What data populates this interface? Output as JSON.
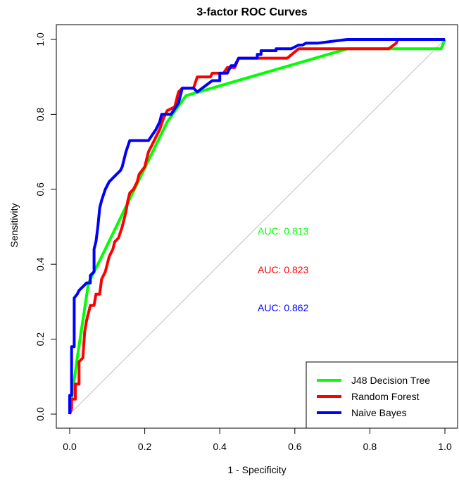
{
  "chart_data": {
    "type": "line",
    "title": "3-factor ROC Curves",
    "xlabel": "1 - Specificity",
    "ylabel": "Sensitivity",
    "xlim": [
      0,
      1
    ],
    "ylim": [
      0,
      1
    ],
    "xticks": [
      "0.0",
      "0.2",
      "0.4",
      "0.6",
      "0.8",
      "1.0"
    ],
    "yticks": [
      "0.0",
      "0.2",
      "0.4",
      "0.6",
      "0.8",
      "1.0"
    ],
    "legend_position": "bottom-right",
    "grid": false,
    "diagonal_reference": true,
    "diagonal_color": "#c0c0c0",
    "series": [
      {
        "name": "J48 Decision Tree",
        "color": "#00ff00",
        "auc_label": "AUC: 0.813",
        "points": [
          [
            0,
            0
          ],
          [
            0.02,
            0.15
          ],
          [
            0.05,
            0.35
          ],
          [
            0.085,
            0.42
          ],
          [
            0.26,
            0.78
          ],
          [
            0.31,
            0.85
          ],
          [
            0.74,
            0.975
          ],
          [
            0.99,
            0.975
          ],
          [
            1.0,
            1.0
          ]
        ]
      },
      {
        "name": "Random Forest",
        "color": "#ff0000",
        "auc_label": "AUC: 0.823",
        "points": [
          [
            0,
            0
          ],
          [
            0.005,
            0.015
          ],
          [
            0.005,
            0.04
          ],
          [
            0.015,
            0.04
          ],
          [
            0.015,
            0.08
          ],
          [
            0.025,
            0.08
          ],
          [
            0.025,
            0.14
          ],
          [
            0.035,
            0.15
          ],
          [
            0.04,
            0.22
          ],
          [
            0.045,
            0.25
          ],
          [
            0.05,
            0.27
          ],
          [
            0.055,
            0.29
          ],
          [
            0.065,
            0.29
          ],
          [
            0.07,
            0.32
          ],
          [
            0.08,
            0.32
          ],
          [
            0.085,
            0.36
          ],
          [
            0.095,
            0.38
          ],
          [
            0.1,
            0.4
          ],
          [
            0.105,
            0.42
          ],
          [
            0.11,
            0.43
          ],
          [
            0.115,
            0.44
          ],
          [
            0.12,
            0.46
          ],
          [
            0.13,
            0.47
          ],
          [
            0.14,
            0.5
          ],
          [
            0.15,
            0.54
          ],
          [
            0.155,
            0.57
          ],
          [
            0.16,
            0.59
          ],
          [
            0.17,
            0.6
          ],
          [
            0.18,
            0.62
          ],
          [
            0.185,
            0.64
          ],
          [
            0.2,
            0.66
          ],
          [
            0.21,
            0.7
          ],
          [
            0.22,
            0.72
          ],
          [
            0.23,
            0.74
          ],
          [
            0.24,
            0.76
          ],
          [
            0.25,
            0.79
          ],
          [
            0.26,
            0.81
          ],
          [
            0.28,
            0.82
          ],
          [
            0.29,
            0.86
          ],
          [
            0.3,
            0.87
          ],
          [
            0.33,
            0.87
          ],
          [
            0.34,
            0.9
          ],
          [
            0.375,
            0.9
          ],
          [
            0.38,
            0.91
          ],
          [
            0.41,
            0.91
          ],
          [
            0.42,
            0.925
          ],
          [
            0.44,
            0.925
          ],
          [
            0.45,
            0.95
          ],
          [
            0.58,
            0.95
          ],
          [
            0.61,
            0.975
          ],
          [
            0.85,
            0.975
          ],
          [
            0.87,
            0.99
          ],
          [
            0.875,
            1.0
          ]
        ]
      },
      {
        "name": "Naive Bayes",
        "color": "#0000ff",
        "auc_label": "AUC: 0.862",
        "points": [
          [
            0,
            0
          ],
          [
            0.0,
            0.05
          ],
          [
            0.005,
            0.05
          ],
          [
            0.005,
            0.18
          ],
          [
            0.012,
            0.18
          ],
          [
            0.012,
            0.31
          ],
          [
            0.02,
            0.32
          ],
          [
            0.025,
            0.33
          ],
          [
            0.035,
            0.34
          ],
          [
            0.045,
            0.35
          ],
          [
            0.055,
            0.35
          ],
          [
            0.055,
            0.37
          ],
          [
            0.065,
            0.38
          ],
          [
            0.065,
            0.44
          ],
          [
            0.07,
            0.46
          ],
          [
            0.075,
            0.5
          ],
          [
            0.08,
            0.55
          ],
          [
            0.085,
            0.57
          ],
          [
            0.095,
            0.6
          ],
          [
            0.105,
            0.62
          ],
          [
            0.115,
            0.63
          ],
          [
            0.125,
            0.64
          ],
          [
            0.135,
            0.65
          ],
          [
            0.14,
            0.66
          ],
          [
            0.15,
            0.7
          ],
          [
            0.16,
            0.73
          ],
          [
            0.21,
            0.73
          ],
          [
            0.23,
            0.76
          ],
          [
            0.24,
            0.78
          ],
          [
            0.245,
            0.8
          ],
          [
            0.27,
            0.8
          ],
          [
            0.29,
            0.83
          ],
          [
            0.3,
            0.87
          ],
          [
            0.33,
            0.87
          ],
          [
            0.34,
            0.86
          ],
          [
            0.38,
            0.89
          ],
          [
            0.4,
            0.89
          ],
          [
            0.4,
            0.91
          ],
          [
            0.42,
            0.91
          ],
          [
            0.43,
            0.93
          ],
          [
            0.44,
            0.93
          ],
          [
            0.45,
            0.95
          ],
          [
            0.5,
            0.95
          ],
          [
            0.5,
            0.96
          ],
          [
            0.51,
            0.96
          ],
          [
            0.51,
            0.97
          ],
          [
            0.55,
            0.97
          ],
          [
            0.55,
            0.975
          ],
          [
            0.59,
            0.975
          ],
          [
            0.6,
            0.98
          ],
          [
            0.61,
            0.985
          ],
          [
            0.62,
            0.985
          ],
          [
            0.63,
            0.99
          ],
          [
            0.66,
            0.99
          ],
          [
            0.74,
            1.0
          ],
          [
            1.0,
            1.0
          ]
        ]
      }
    ]
  }
}
